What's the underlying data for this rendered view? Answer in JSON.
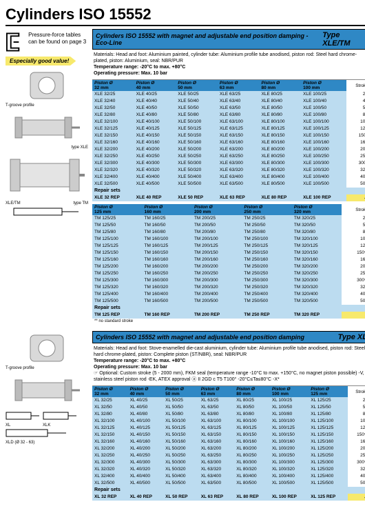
{
  "page_title": "Cylinders ISO 15552",
  "note": "Pressure-force tables can be found on page 3",
  "section1": {
    "titlebar_left": "Cylinders ISO 15552 with magnet and adjustable end position damping - Eco-Line",
    "titlebar_right": "Type XLE/TM",
    "materials": "Materials: Head and foot: Aluminium painted, cylinder tube: Aluminium profile tube anodised, piston rod: Steel hard chrome-plated, piston: Aluminium, seal: NBR/PUR",
    "temp": "Temperature range: -20°C to max. +80°C",
    "press": "Operating pressure: Max. 10 bar",
    "good_value": "Especially good value!",
    "caption1": "T-groove profile",
    "caption2": "type XLE",
    "caption3": "XLE/TM",
    "caption4": "type TM",
    "table1": {
      "head_label": "Piston Ø",
      "sizes": [
        "32 mm",
        "40 mm",
        "50 mm",
        "63 mm",
        "80 mm",
        "100 mm"
      ],
      "stroke_head": "Stroke",
      "rows": [
        {
          "c": [
            "XLE 32/25",
            "XLE 40/25",
            "XLE 50/25",
            "XLE 63/25",
            "XLE 80/25",
            "XLE 100/25"
          ],
          "s": "25"
        },
        {
          "c": [
            "XLE 32/40",
            "XLE 40/40",
            "XLE 50/40",
            "XLE 63/40",
            "XLE 80/40",
            "XLE 100/40"
          ],
          "s": "40"
        },
        {
          "c": [
            "XLE 32/50",
            "XLE 40/50",
            "XLE 50/50",
            "XLE 63/50",
            "XLE 80/50",
            "XLE 100/50"
          ],
          "s": "50"
        },
        {
          "c": [
            "XLE 32/80",
            "XLE 40/80",
            "XLE 50/80",
            "XLE 63/80",
            "XLE 80/80",
            "XLE 100/80"
          ],
          "s": "80"
        },
        {
          "c": [
            "XLE 32/100",
            "XLE 40/100",
            "XLE 50/100",
            "XLE 63/100",
            "XLE 80/100",
            "XLE 100/100"
          ],
          "s": "100"
        },
        {
          "c": [
            "XLE 32/125",
            "XLE 40/125",
            "XLE 50/125",
            "XLE 63/125",
            "XLE 80/125",
            "XLE 100/125"
          ],
          "s": "125"
        },
        {
          "c": [
            "XLE 32/150",
            "XLE 40/150",
            "XLE 50/150",
            "XLE 63/150",
            "XLE 80/150",
            "XLE 100/150"
          ],
          "s": "150*"
        },
        {
          "c": [
            "XLE 32/160",
            "XLE 40/160",
            "XLE 50/160",
            "XLE 63/160",
            "XLE 80/160",
            "XLE 100/160"
          ],
          "s": "160"
        },
        {
          "c": [
            "XLE 32/200",
            "XLE 40/200",
            "XLE 50/200",
            "XLE 63/200",
            "XLE 80/200",
            "XLE 100/200"
          ],
          "s": "200"
        },
        {
          "c": [
            "XLE 32/250",
            "XLE 40/250",
            "XLE 50/250",
            "XLE 63/250",
            "XLE 80/250",
            "XLE 100/250"
          ],
          "s": "250"
        },
        {
          "c": [
            "XLE 32/300",
            "XLE 40/300",
            "XLE 50/300",
            "XLE 63/300",
            "XLE 80/300",
            "XLE 100/300"
          ],
          "s": "300*"
        },
        {
          "c": [
            "XLE 32/320",
            "XLE 40/320",
            "XLE 50/320",
            "XLE 63/320",
            "XLE 80/320",
            "XLE 100/320"
          ],
          "s": "320"
        },
        {
          "c": [
            "XLE 32/400",
            "XLE 40/400",
            "XLE 50/400",
            "XLE 63/400",
            "XLE 80/400",
            "XLE 100/400"
          ],
          "s": "400"
        },
        {
          "c": [
            "XLE 32/500",
            "XLE 40/500",
            "XLE 50/500",
            "XLE 63/500",
            "XLE 80/500",
            "XLE 100/500"
          ],
          "s": "500"
        }
      ],
      "repair_label": "Repair sets",
      "repair": [
        "XLE 32 REP",
        "XLE 40 REP",
        "XLE 50 REP",
        "XLE 63 REP",
        "XLE 80 REP",
        "XLE 100 REP"
      ]
    },
    "table2": {
      "head_label": "Piston Ø",
      "sizes": [
        "125 mm",
        "160 mm",
        "200 mm",
        "250 mm",
        "320 mm"
      ],
      "stroke_head": "Stroke",
      "rows": [
        {
          "c": [
            "TM 125/25",
            "TM 160/25",
            "TM 200/25",
            "TM 250/25",
            "TM 320/25"
          ],
          "s": "25"
        },
        {
          "c": [
            "TM 125/50",
            "TM 160/50",
            "TM 200/50",
            "TM 250/50",
            "TM 320/50"
          ],
          "s": "50"
        },
        {
          "c": [
            "TM 125/80",
            "TM 160/80",
            "TM 200/80",
            "TM 250/80",
            "TM 320/80"
          ],
          "s": "80"
        },
        {
          "c": [
            "TM 125/100",
            "TM 160/100",
            "TM 200/100",
            "TM 250/100",
            "TM 320/100"
          ],
          "s": "100"
        },
        {
          "c": [
            "TM 125/125",
            "TM 160/125",
            "TM 200/125",
            "TM 250/125",
            "TM 320/125"
          ],
          "s": "125"
        },
        {
          "c": [
            "TM 125/150",
            "TM 160/150",
            "TM 200/150",
            "TM 250/150",
            "TM 320/150"
          ],
          "s": "150**"
        },
        {
          "c": [
            "TM 125/160",
            "TM 160/160",
            "TM 200/160",
            "TM 250/160",
            "TM 320/160"
          ],
          "s": "160"
        },
        {
          "c": [
            "TM 125/200",
            "TM 160/200",
            "TM 200/200",
            "TM 250/200",
            "TM 320/200"
          ],
          "s": "200"
        },
        {
          "c": [
            "TM 125/250",
            "TM 160/250",
            "TM 200/250",
            "TM 250/250",
            "TM 320/250"
          ],
          "s": "250"
        },
        {
          "c": [
            "TM 125/300",
            "TM 160/300",
            "TM 200/300",
            "TM 250/300",
            "TM 320/300"
          ],
          "s": "300**"
        },
        {
          "c": [
            "TM 125/320",
            "TM 160/320",
            "TM 200/320",
            "TM 250/320",
            "TM 320/320"
          ],
          "s": "320"
        },
        {
          "c": [
            "TM 125/400",
            "TM 160/400",
            "TM 200/400",
            "TM 250/400",
            "TM 320/400"
          ],
          "s": "400"
        },
        {
          "c": [
            "TM 125/500",
            "TM 160/500",
            "TM 200/500",
            "TM 250/500",
            "TM 320/500"
          ],
          "s": "500"
        }
      ],
      "repair_label": "Repair sets",
      "repair": [
        "TM 125 REP",
        "TM 160 REP",
        "TM 200 REP",
        "TM 250 REP",
        "TM 320 REP"
      ],
      "footnote": "** no standard stroke"
    }
  },
  "section2": {
    "titlebar_left": "Cylinders ISO 15552 with magnet and adjustable end position damping",
    "titlebar_right": "Type XL",
    "materials": "Materials: Head and foot: Stove-enamelled die-cast aluminium, cylinder tube: Aluminium profile tube anodised, piston rod: Steel hard chrome-plated, piston: Complete piston (ST/NBR), seal: NBR/PUR",
    "temp": "Temperature range: -20°C to max. +80°C",
    "press": "Operating pressure: Max. 10 bar",
    "opt": "☞ Optional: Custom stroke (5 - 2000 mm), FKM seal (temperature range -10°C to max. +150°C, no magnet piston possible) -V, stainless steel piston rod -EK, ATEX approval ⓐ II 2GD c T5 T100° -20°C≤Ta≤80°C -X*",
    "caption1": "T-groove profile",
    "caption2": "XL",
    "caption3": "XLK",
    "caption4": "XLD (Ø 32 - 63)",
    "table": {
      "head_label": "Piston Ø",
      "sizes": [
        "32 mm",
        "40 mm",
        "50 mm",
        "63 mm",
        "80 mm",
        "100 mm",
        "125 mm"
      ],
      "stroke_head": "Stroke",
      "rows": [
        {
          "c": [
            "XL 32/25",
            "XL 40/25",
            "XL 50/25",
            "XL 63/25",
            "XL 80/25",
            "XL 100/25",
            "XL 125/25"
          ],
          "s": "25"
        },
        {
          "c": [
            "XL 32/50",
            "XL 40/50",
            "XL 50/50",
            "XL 63/50",
            "XL 80/50",
            "XL 100/50",
            "XL 125/50"
          ],
          "s": "50"
        },
        {
          "c": [
            "XL 32/80",
            "XL 40/80",
            "XL 50/80",
            "XL 63/80",
            "XL 80/80",
            "XL 100/80",
            "XL 125/80"
          ],
          "s": "80"
        },
        {
          "c": [
            "XL 32/100",
            "XL 40/100",
            "XL 50/100",
            "XL 63/100",
            "XL 80/100",
            "XL 100/100",
            "XL 125/100"
          ],
          "s": "100"
        },
        {
          "c": [
            "XL 32/125",
            "XL 40/125",
            "XL 50/125",
            "XL 63/125",
            "XL 80/125",
            "XL 100/125",
            "XL 125/125"
          ],
          "s": "125"
        },
        {
          "c": [
            "XL 32/150",
            "XL 40/150",
            "XL 50/150",
            "XL 63/150",
            "XL 80/150",
            "XL 100/150",
            "XL 125/150"
          ],
          "s": "150**"
        },
        {
          "c": [
            "XL 32/160",
            "XL 40/160",
            "XL 50/160",
            "XL 63/160",
            "XL 80/160",
            "XL 100/160",
            "XL 125/160"
          ],
          "s": "160"
        },
        {
          "c": [
            "XL 32/200",
            "XL 40/200",
            "XL 50/200",
            "XL 63/200",
            "XL 80/200",
            "XL 100/200",
            "XL 125/200"
          ],
          "s": "200"
        },
        {
          "c": [
            "XL 32/250",
            "XL 40/250",
            "XL 50/250",
            "XL 63/250",
            "XL 80/250",
            "XL 100/250",
            "XL 125/250"
          ],
          "s": "250"
        },
        {
          "c": [
            "XL 32/300",
            "XL 40/300",
            "XL 50/300",
            "XL 63/300",
            "XL 80/300",
            "XL 100/300",
            "XL 125/300"
          ],
          "s": "300**"
        },
        {
          "c": [
            "XL 32/320",
            "XL 40/320",
            "XL 50/320",
            "XL 63/320",
            "XL 80/320",
            "XL 100/320",
            "XL 125/320"
          ],
          "s": "320"
        },
        {
          "c": [
            "XL 32/400",
            "XL 40/400",
            "XL 50/400",
            "XL 63/400",
            "XL 80/400",
            "XL 100/400",
            "XL 125/400"
          ],
          "s": "400"
        },
        {
          "c": [
            "XL 32/500",
            "XL 40/500",
            "XL 50/500",
            "XL 63/500",
            "XL 80/500",
            "XL 100/500",
            "XL 125/500"
          ],
          "s": "500"
        }
      ],
      "repair_label": "Repair sets",
      "repair": [
        "XL 32 REP",
        "XL 40 REP",
        "XL 50 REP",
        "XL 63 REP",
        "XL 80 REP",
        "XL 100 REP",
        "XL 125 REP"
      ]
    }
  }
}
